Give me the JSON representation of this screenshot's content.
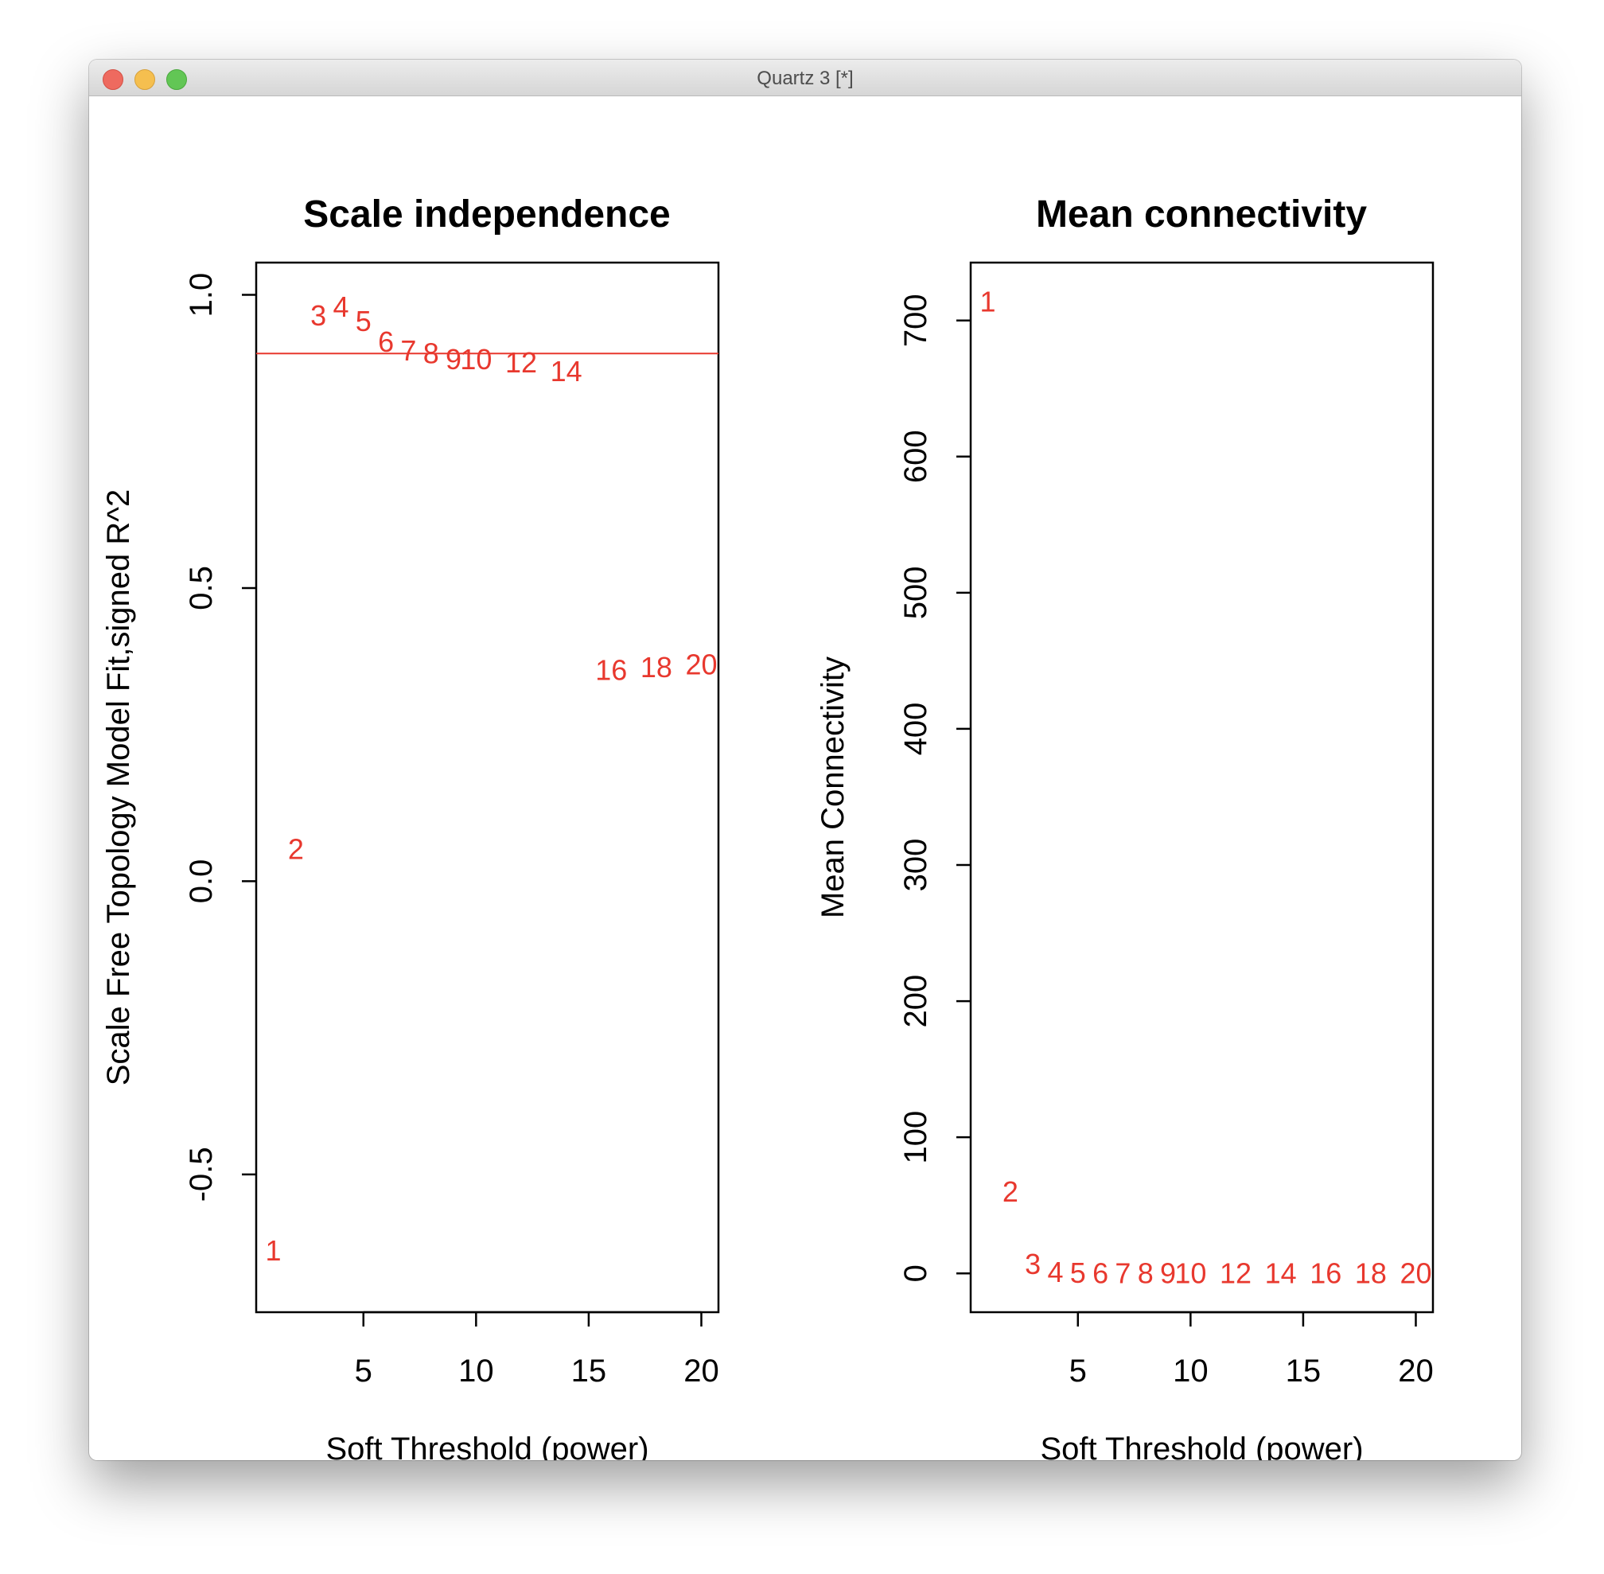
{
  "window": {
    "title": "Quartz 3 [*]",
    "buttons": [
      "close",
      "minimize",
      "zoom"
    ]
  },
  "colors": {
    "points": "#e8382e",
    "cut_line": "#e8382e",
    "axes": "#000000"
  },
  "chart_data": [
    {
      "type": "scatter",
      "marker": "text-labels",
      "title": "Scale independence",
      "xlabel": "Soft Threshold (power)",
      "ylabel": "Scale Free Topology Model Fit,signed R^2",
      "xlim": [
        0.24,
        20.76
      ],
      "ylim": [
        -0.735,
        1.055
      ],
      "xticks": [
        "5",
        "10",
        "15",
        "20"
      ],
      "yticks": [
        "-0.5",
        "0.0",
        "0.5",
        "1.0"
      ],
      "hline": 0.9,
      "x": [
        1,
        2,
        3,
        4,
        5,
        6,
        7,
        8,
        9,
        10,
        12,
        14,
        16,
        18,
        20
      ],
      "labels": [
        "1",
        "2",
        "3",
        "4",
        "5",
        "6",
        "7",
        "8",
        "9",
        "10",
        "12",
        "14",
        "16",
        "18",
        "20"
      ],
      "values": [
        -0.63,
        0.055,
        0.965,
        0.98,
        0.955,
        0.92,
        0.905,
        0.9,
        0.89,
        0.89,
        0.885,
        0.87,
        0.36,
        0.365,
        0.37
      ]
    },
    {
      "type": "scatter",
      "marker": "text-labels",
      "title": "Mean connectivity",
      "xlabel": "Soft Threshold (power)",
      "ylabel": "Mean Connectivity",
      "xlim": [
        0.24,
        20.76
      ],
      "ylim": [
        -28.5,
        742.5
      ],
      "xticks": [
        "5",
        "10",
        "15",
        "20"
      ],
      "yticks": [
        "0",
        "100",
        "200",
        "300",
        "400",
        "500",
        "600",
        "700"
      ],
      "x": [
        1,
        2,
        3,
        4,
        5,
        6,
        7,
        8,
        9,
        10,
        12,
        14,
        16,
        18,
        20
      ],
      "labels": [
        "1",
        "2",
        "3",
        "4",
        "5",
        "6",
        "7",
        "8",
        "9",
        "10",
        "12",
        "14",
        "16",
        "18",
        "20"
      ],
      "values": [
        714,
        60,
        7,
        1,
        0.4,
        0.2,
        0.1,
        0.05,
        0.03,
        0.02,
        0.01,
        0.01,
        0,
        0,
        0
      ]
    }
  ]
}
